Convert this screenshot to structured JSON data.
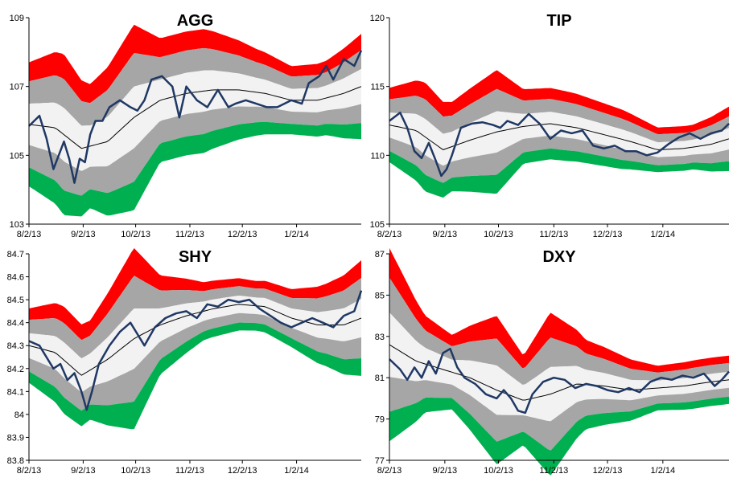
{
  "chart_data": [
    {
      "type": "area",
      "title": "AGG",
      "ylim": [
        103,
        109
      ],
      "yticks": [
        "103",
        "105",
        "107",
        "109"
      ],
      "xticks": [
        "8/2/13",
        "9/2/13",
        "10/2/13",
        "11/2/13",
        "12/2/13",
        "1/2/14"
      ],
      "xticks_pos": [
        0,
        31,
        61,
        92,
        122,
        153
      ],
      "days": 191,
      "price": [
        [
          0,
          105.85
        ],
        [
          6,
          106.15
        ],
        [
          10,
          105.5
        ],
        [
          14,
          104.6
        ],
        [
          17,
          105.0
        ],
        [
          20,
          105.4
        ],
        [
          23,
          104.9
        ],
        [
          26,
          104.2
        ],
        [
          29,
          104.9
        ],
        [
          32,
          104.8
        ],
        [
          35,
          105.6
        ],
        [
          38,
          106.0
        ],
        [
          42,
          106.0
        ],
        [
          46,
          106.4
        ],
        [
          52,
          106.6
        ],
        [
          58,
          106.4
        ],
        [
          62,
          106.3
        ],
        [
          66,
          106.6
        ],
        [
          70,
          107.2
        ],
        [
          76,
          107.3
        ],
        [
          82,
          107.0
        ],
        [
          86,
          106.1
        ],
        [
          90,
          107.0
        ],
        [
          96,
          106.6
        ],
        [
          102,
          106.4
        ],
        [
          108,
          106.9
        ],
        [
          114,
          106.4
        ],
        [
          118,
          106.5
        ],
        [
          124,
          106.6
        ],
        [
          130,
          106.5
        ],
        [
          136,
          106.4
        ],
        [
          142,
          106.4
        ],
        [
          150,
          106.6
        ],
        [
          156,
          106.5
        ],
        [
          160,
          107.1
        ],
        [
          166,
          107.3
        ],
        [
          170,
          107.6
        ],
        [
          174,
          107.2
        ],
        [
          180,
          107.8
        ],
        [
          186,
          107.6
        ],
        [
          190,
          108.05
        ]
      ],
      "mean": [
        [
          0,
          105.9
        ],
        [
          15,
          105.8
        ],
        [
          30,
          105.2
        ],
        [
          45,
          105.4
        ],
        [
          60,
          106.1
        ],
        [
          75,
          106.6
        ],
        [
          90,
          106.8
        ],
        [
          105,
          106.9
        ],
        [
          120,
          106.9
        ],
        [
          135,
          106.8
        ],
        [
          150,
          106.6
        ],
        [
          165,
          106.6
        ],
        [
          180,
          106.8
        ],
        [
          190,
          107.0
        ]
      ],
      "halfwidth": [
        [
          0,
          1.0
        ],
        [
          20,
          1.3
        ],
        [
          35,
          1.0
        ],
        [
          60,
          1.5
        ],
        [
          75,
          1.0
        ],
        [
          100,
          1.0
        ],
        [
          130,
          0.7
        ],
        [
          150,
          0.55
        ],
        [
          170,
          0.6
        ],
        [
          190,
          0.85
        ]
      ],
      "colors": {
        "upper": "#ff0000",
        "lower": "#00b050",
        "outer": "#a6a6a6",
        "inner": "#f2f2f2",
        "price": "#1f3864",
        "mean": "#000000"
      }
    },
    {
      "type": "area",
      "title": "TIP",
      "ylim": [
        105,
        120
      ],
      "yticks": [
        "105",
        "110",
        "115",
        "120"
      ],
      "xticks": [
        "8/2/13",
        "9/2/13",
        "10/2/13",
        "11/2/13",
        "12/2/13",
        "1/2/14"
      ],
      "xticks_pos": [
        0,
        31,
        61,
        92,
        122,
        153
      ],
      "days": 191,
      "price": [
        [
          0,
          112.5
        ],
        [
          6,
          113.1
        ],
        [
          10,
          112.0
        ],
        [
          14,
          110.3
        ],
        [
          18,
          109.8
        ],
        [
          22,
          110.9
        ],
        [
          26,
          109.6
        ],
        [
          29,
          108.5
        ],
        [
          32,
          109.0
        ],
        [
          35,
          110.0
        ],
        [
          40,
          112.0
        ],
        [
          46,
          112.3
        ],
        [
          52,
          112.4
        ],
        [
          58,
          112.2
        ],
        [
          62,
          112.0
        ],
        [
          66,
          112.5
        ],
        [
          72,
          112.2
        ],
        [
          78,
          113.0
        ],
        [
          84,
          112.3
        ],
        [
          90,
          111.2
        ],
        [
          96,
          111.8
        ],
        [
          102,
          111.6
        ],
        [
          108,
          111.8
        ],
        [
          114,
          110.7
        ],
        [
          120,
          110.5
        ],
        [
          126,
          110.7
        ],
        [
          132,
          110.3
        ],
        [
          138,
          110.3
        ],
        [
          144,
          110.0
        ],
        [
          150,
          110.2
        ],
        [
          156,
          110.8
        ],
        [
          162,
          111.3
        ],
        [
          168,
          111.6
        ],
        [
          174,
          111.2
        ],
        [
          180,
          111.6
        ],
        [
          186,
          111.8
        ],
        [
          190,
          112.3
        ]
      ],
      "mean": [
        [
          0,
          112.2
        ],
        [
          15,
          111.8
        ],
        [
          30,
          110.4
        ],
        [
          45,
          111.1
        ],
        [
          60,
          111.7
        ],
        [
          75,
          112.1
        ],
        [
          90,
          112.3
        ],
        [
          105,
          112.0
        ],
        [
          120,
          111.5
        ],
        [
          135,
          111.0
        ],
        [
          150,
          110.4
        ],
        [
          165,
          110.5
        ],
        [
          180,
          110.8
        ],
        [
          190,
          111.2
        ]
      ],
      "halfwidth": [
        [
          0,
          1.5
        ],
        [
          20,
          2.2
        ],
        [
          35,
          1.8
        ],
        [
          60,
          2.5
        ],
        [
          75,
          1.5
        ],
        [
          100,
          1.4
        ],
        [
          130,
          1.2
        ],
        [
          150,
          0.9
        ],
        [
          170,
          0.9
        ],
        [
          190,
          1.3
        ]
      ],
      "colors": {
        "upper": "#ff0000",
        "lower": "#00b050",
        "outer": "#a6a6a6",
        "inner": "#f2f2f2",
        "price": "#1f3864",
        "mean": "#000000"
      }
    },
    {
      "type": "area",
      "title": "SHY",
      "ylim": [
        83.8,
        84.7
      ],
      "yticks": [
        "83.8",
        "83.9",
        "84",
        "84.1",
        "84.2",
        "84.3",
        "84.4",
        "84.5",
        "84.6",
        "84.7"
      ],
      "xticks": [
        "8/2/13",
        "9/2/13",
        "10/2/13",
        "11/2/13",
        "12/2/13",
        "1/2/14"
      ],
      "xticks_pos": [
        0,
        31,
        61,
        92,
        122,
        153
      ],
      "days": 191,
      "price": [
        [
          0,
          84.32
        ],
        [
          6,
          84.3
        ],
        [
          10,
          84.25
        ],
        [
          14,
          84.2
        ],
        [
          18,
          84.22
        ],
        [
          22,
          84.15
        ],
        [
          26,
          84.18
        ],
        [
          30,
          84.1
        ],
        [
          33,
          84.02
        ],
        [
          36,
          84.1
        ],
        [
          40,
          84.22
        ],
        [
          46,
          84.3
        ],
        [
          52,
          84.36
        ],
        [
          58,
          84.4
        ],
        [
          62,
          84.35
        ],
        [
          66,
          84.3
        ],
        [
          72,
          84.38
        ],
        [
          78,
          84.42
        ],
        [
          84,
          84.44
        ],
        [
          90,
          84.45
        ],
        [
          96,
          84.42
        ],
        [
          102,
          84.48
        ],
        [
          108,
          84.47
        ],
        [
          114,
          84.5
        ],
        [
          120,
          84.49
        ],
        [
          126,
          84.5
        ],
        [
          132,
          84.46
        ],
        [
          138,
          84.43
        ],
        [
          144,
          84.4
        ],
        [
          150,
          84.38
        ],
        [
          156,
          84.4
        ],
        [
          162,
          84.42
        ],
        [
          168,
          84.4
        ],
        [
          174,
          84.38
        ],
        [
          180,
          84.43
        ],
        [
          186,
          84.45
        ],
        [
          190,
          84.54
        ]
      ],
      "mean": [
        [
          0,
          84.3
        ],
        [
          15,
          84.27
        ],
        [
          30,
          84.17
        ],
        [
          45,
          84.24
        ],
        [
          60,
          84.33
        ],
        [
          75,
          84.39
        ],
        [
          90,
          84.43
        ],
        [
          105,
          84.46
        ],
        [
          120,
          84.48
        ],
        [
          135,
          84.47
        ],
        [
          150,
          84.42
        ],
        [
          165,
          84.39
        ],
        [
          180,
          84.39
        ],
        [
          190,
          84.42
        ]
      ],
      "halfwidth": [
        [
          0,
          0.09
        ],
        [
          20,
          0.13
        ],
        [
          35,
          0.12
        ],
        [
          60,
          0.22
        ],
        [
          75,
          0.12
        ],
        [
          100,
          0.07
        ],
        [
          130,
          0.06
        ],
        [
          150,
          0.07
        ],
        [
          170,
          0.1
        ],
        [
          190,
          0.14
        ]
      ],
      "colors": {
        "upper": "#ff0000",
        "lower": "#00b050",
        "outer": "#a6a6a6",
        "inner": "#f2f2f2",
        "price": "#1f3864",
        "mean": "#000000"
      }
    },
    {
      "type": "area",
      "title": "DXY",
      "ylim": [
        77,
        87
      ],
      "yticks": [
        "77",
        "79",
        "81",
        "83",
        "85",
        "87"
      ],
      "xticks": [
        "8/2/13",
        "9/2/13",
        "10/2/13",
        "11/2/13",
        "12/2/13",
        "1/2/14"
      ],
      "xticks_pos": [
        0,
        31,
        61,
        92,
        122,
        153
      ],
      "days": 191,
      "price": [
        [
          0,
          81.9
        ],
        [
          6,
          81.4
        ],
        [
          10,
          80.9
        ],
        [
          14,
          81.5
        ],
        [
          18,
          81.0
        ],
        [
          22,
          81.8
        ],
        [
          26,
          81.2
        ],
        [
          30,
          82.2
        ],
        [
          34,
          82.4
        ],
        [
          38,
          81.5
        ],
        [
          42,
          81.0
        ],
        [
          48,
          80.7
        ],
        [
          54,
          80.2
        ],
        [
          60,
          80.0
        ],
        [
          64,
          80.4
        ],
        [
          68,
          80.0
        ],
        [
          72,
          79.4
        ],
        [
          76,
          79.3
        ],
        [
          80,
          80.2
        ],
        [
          86,
          80.8
        ],
        [
          92,
          81.0
        ],
        [
          98,
          80.9
        ],
        [
          104,
          80.5
        ],
        [
          110,
          80.7
        ],
        [
          116,
          80.6
        ],
        [
          122,
          80.4
        ],
        [
          128,
          80.3
        ],
        [
          134,
          80.5
        ],
        [
          140,
          80.3
        ],
        [
          146,
          80.8
        ],
        [
          152,
          81.0
        ],
        [
          158,
          80.9
        ],
        [
          164,
          81.1
        ],
        [
          170,
          81.0
        ],
        [
          176,
          81.2
        ],
        [
          182,
          80.6
        ],
        [
          186,
          80.9
        ],
        [
          190,
          81.3
        ]
      ],
      "mean": [
        [
          0,
          82.6
        ],
        [
          15,
          81.8
        ],
        [
          30,
          81.4
        ],
        [
          45,
          81.0
        ],
        [
          60,
          80.4
        ],
        [
          75,
          79.9
        ],
        [
          90,
          80.2
        ],
        [
          105,
          80.7
        ],
        [
          120,
          80.6
        ],
        [
          135,
          80.4
        ],
        [
          150,
          80.5
        ],
        [
          165,
          80.6
        ],
        [
          180,
          80.8
        ],
        [
          190,
          80.9
        ]
      ],
      "halfwidth": [
        [
          0,
          2.6
        ],
        [
          20,
          1.3
        ],
        [
          35,
          1.0
        ],
        [
          60,
          2.0
        ],
        [
          75,
          1.2
        ],
        [
          90,
          2.2
        ],
        [
          110,
          1.2
        ],
        [
          130,
          0.9
        ],
        [
          150,
          0.6
        ],
        [
          170,
          0.65
        ],
        [
          190,
          0.65
        ]
      ],
      "colors": {
        "upper": "#ff0000",
        "lower": "#00b050",
        "outer": "#a6a6a6",
        "inner": "#f2f2f2",
        "price": "#1f3864",
        "mean": "#000000"
      }
    }
  ]
}
